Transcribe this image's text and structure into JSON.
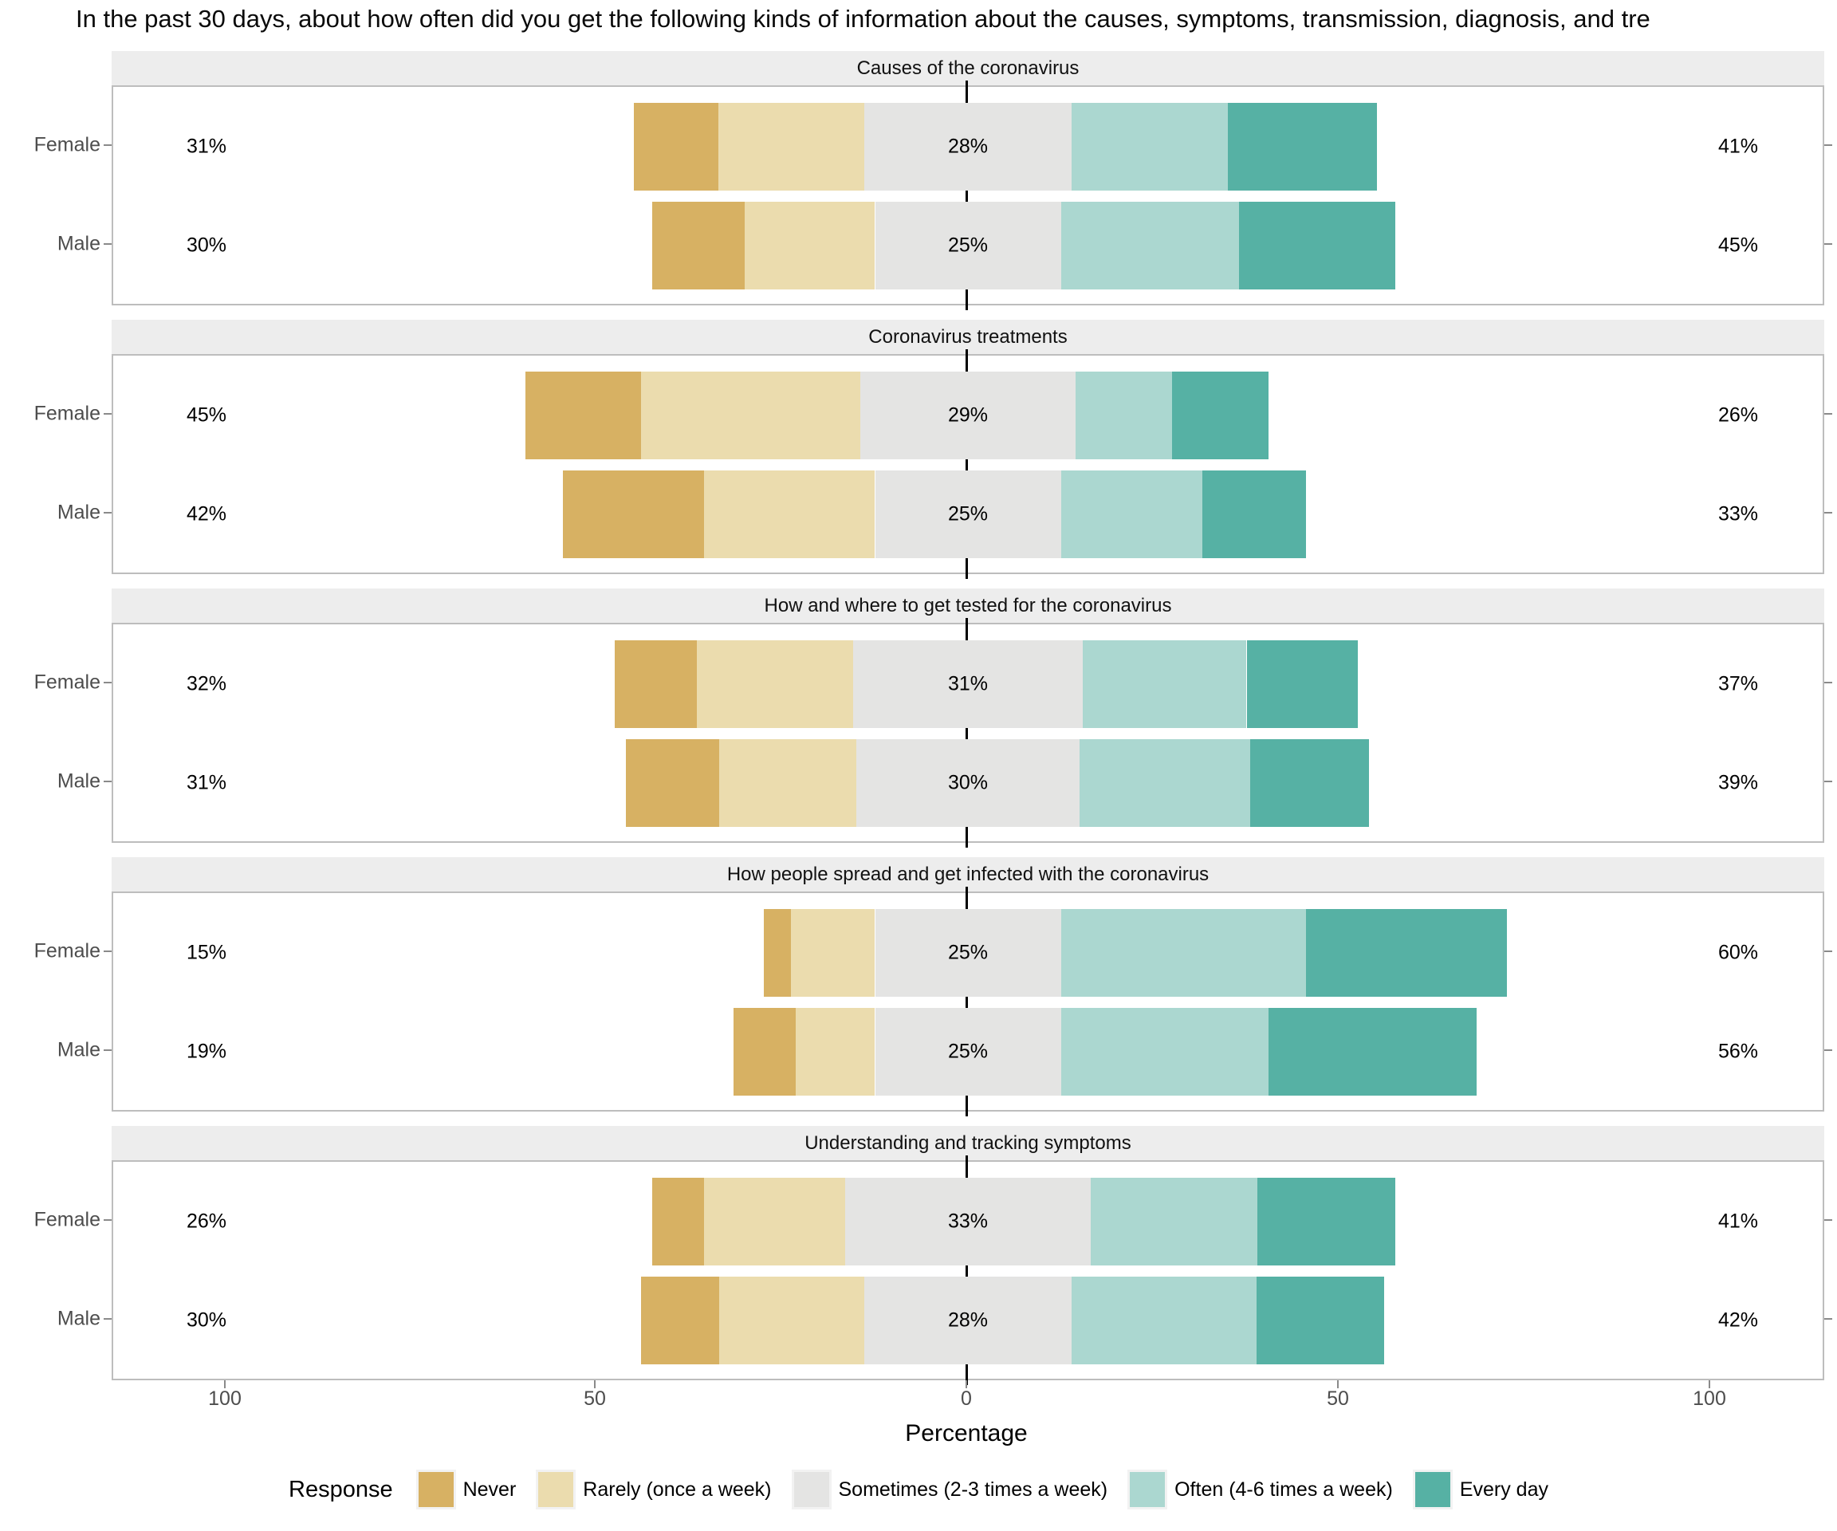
{
  "title": "In the past 30 days, about how often did you get the following kinds of information about the causes, symptoms, transmission, diagnosis, and tre",
  "axis": {
    "xlabel": "Percentage",
    "tick_labels": [
      "100",
      "50",
      "0",
      "50",
      "100"
    ]
  },
  "legend": {
    "title": "Response",
    "items": [
      {
        "label": "Never",
        "color": "#d7b163"
      },
      {
        "label": "Rarely (once a week)",
        "color": "#ebdcae"
      },
      {
        "label": "Sometimes (2-3 times a week)",
        "color": "#e4e4e3"
      },
      {
        "label": "Often (4-6 times a week)",
        "color": "#abd7d0"
      },
      {
        "label": "Every day",
        "color": "#56b1a4"
      }
    ]
  },
  "chart_data": {
    "type": "bar",
    "subtype": "diverging-stacked-likert",
    "unit": "percent",
    "categories": [
      "Never",
      "Rarely (once a week)",
      "Sometimes (2-3 times a week)",
      "Often (4-6 times a week)",
      "Every day"
    ],
    "x_axis": {
      "tick_values": [
        -100,
        -50,
        0,
        50,
        100
      ],
      "range": [
        -115,
        115
      ]
    },
    "note": "Sometimes segment is centered on 0; labels show Never+Rarely, Sometimes, Often+Every day",
    "panels": [
      {
        "title": "Causes of the coronavirus",
        "rows": [
          {
            "group": "Female",
            "values": [
              11.4,
              19.6,
              28,
              21,
              20
            ],
            "labels": {
              "left": "31%",
              "mid": "28%",
              "right": "41%"
            }
          },
          {
            "group": "Male",
            "values": [
              12.5,
              17.5,
              25,
              24,
              21
            ],
            "labels": {
              "left": "30%",
              "mid": "25%",
              "right": "45%"
            }
          }
        ]
      },
      {
        "title": "Coronavirus treatments",
        "rows": [
          {
            "group": "Female",
            "values": [
              15.5,
              29.5,
              29,
              13,
              13
            ],
            "labels": {
              "left": "45%",
              "mid": "29%",
              "right": "26%"
            }
          },
          {
            "group": "Male",
            "values": [
              19,
              23,
              25,
              19,
              14
            ],
            "labels": {
              "left": "42%",
              "mid": "25%",
              "right": "33%"
            }
          }
        ]
      },
      {
        "title": "How and where to get tested for the coronavirus",
        "rows": [
          {
            "group": "Female",
            "values": [
              11,
              21,
              31,
              22,
              15
            ],
            "labels": {
              "left": "32%",
              "mid": "31%",
              "right": "37%"
            }
          },
          {
            "group": "Male",
            "values": [
              12.5,
              18.5,
              30,
              23,
              16
            ],
            "labels": {
              "left": "31%",
              "mid": "30%",
              "right": "39%"
            }
          }
        ]
      },
      {
        "title": "How people spread and get infected with the coronavirus",
        "rows": [
          {
            "group": "Female",
            "values": [
              3.7,
              11.3,
              25,
              33,
              27
            ],
            "labels": {
              "left": "15%",
              "mid": "25%",
              "right": "60%"
            }
          },
          {
            "group": "Male",
            "values": [
              8.3,
              10.7,
              25,
              28,
              28
            ],
            "labels": {
              "left": "19%",
              "mid": "25%",
              "right": "56%"
            }
          }
        ]
      },
      {
        "title": "Understanding and tracking symptoms",
        "rows": [
          {
            "group": "Female",
            "values": [
              7,
              19,
              33,
              22.5,
              18.5
            ],
            "labels": {
              "left": "26%",
              "mid": "33%",
              "right": "41%"
            }
          },
          {
            "group": "Male",
            "values": [
              10.5,
              19.5,
              28,
              24.8,
              17.2
            ],
            "labels": {
              "left": "30%",
              "mid": "28%",
              "right": "42%"
            }
          }
        ]
      }
    ]
  }
}
